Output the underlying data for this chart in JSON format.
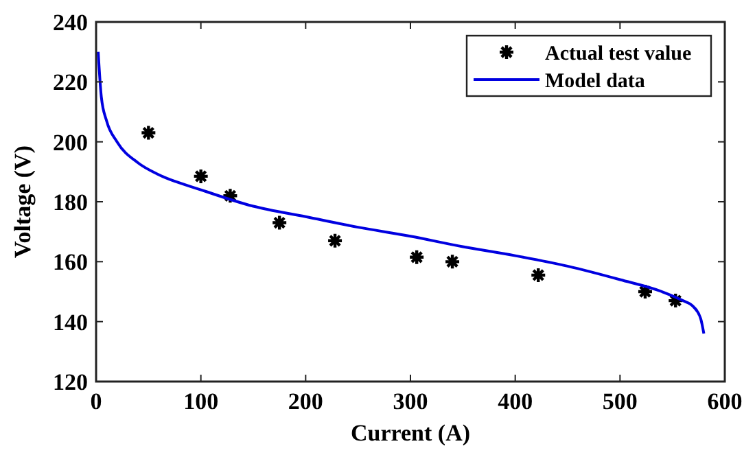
{
  "chart_data": {
    "type": "scatter",
    "xlabel": "Current (A)",
    "ylabel": "Voltage (V)",
    "xlim": [
      0,
      600
    ],
    "ylim": [
      120,
      240
    ],
    "xticks": [
      0,
      100,
      200,
      300,
      400,
      500,
      600
    ],
    "yticks": [
      120,
      140,
      160,
      180,
      200,
      220,
      240
    ],
    "grid": false,
    "legend": "top right",
    "series": [
      {
        "name": "Actual test value",
        "marker": "cross",
        "color": "#000000",
        "x": [
          50,
          100,
          128,
          175,
          228,
          306,
          340,
          422,
          524,
          553
        ],
        "values": [
          203,
          188.5,
          182,
          173,
          167,
          161.5,
          160,
          155.5,
          150,
          147
        ]
      },
      {
        "name": "Model data",
        "type": "line",
        "marker": "none",
        "line_style": "solid",
        "color": "#0000e0",
        "x": [
          2,
          5,
          10,
          20,
          40,
          60,
          100,
          150,
          200,
          250,
          300,
          350,
          400,
          450,
          500,
          540,
          560,
          570,
          577,
          580
        ],
        "values": [
          230,
          215,
          207,
          200,
          193,
          189,
          184,
          178.5,
          175,
          171.5,
          168.5,
          165,
          162,
          158.5,
          154,
          150,
          147,
          145,
          141,
          136
        ]
      }
    ]
  }
}
